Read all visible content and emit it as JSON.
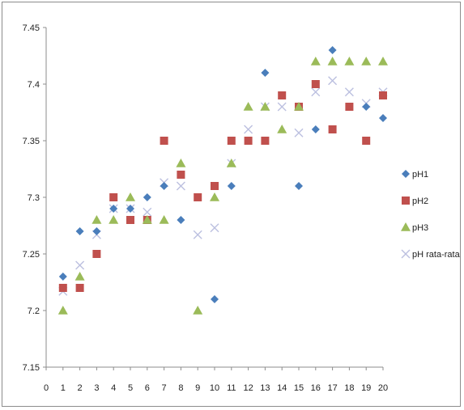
{
  "chart_data": {
    "type": "scatter",
    "title": "",
    "xlabel": "",
    "ylabel": "",
    "xlim": [
      0,
      20
    ],
    "ylim": [
      7.15,
      7.45
    ],
    "x_ticks": [
      "0",
      "1",
      "2",
      "3",
      "4",
      "5",
      "6",
      "7",
      "8",
      "9",
      "10",
      "11",
      "12",
      "13",
      "14",
      "15",
      "16",
      "17",
      "18",
      "19",
      "20"
    ],
    "y_ticks": [
      "7.15",
      "7.2",
      "7.25",
      "7.3",
      "7.35",
      "7.4",
      "7.45"
    ],
    "grid": false,
    "legend_position": "right",
    "x": [
      1,
      2,
      3,
      4,
      5,
      6,
      7,
      8,
      9,
      10,
      11,
      12,
      13,
      14,
      15,
      16,
      17,
      18,
      19,
      20
    ],
    "series": [
      {
        "name": "pH1",
        "marker": "diamond",
        "color": "#4a7ebb",
        "values": [
          7.23,
          7.27,
          7.27,
          7.29,
          7.29,
          7.3,
          7.31,
          7.28,
          null,
          7.21,
          7.31,
          null,
          7.41,
          null,
          7.31,
          7.36,
          7.43,
          null,
          7.38,
          7.37
        ]
      },
      {
        "name": "pH2",
        "marker": "square",
        "color": "#c0504d",
        "values": [
          7.22,
          7.22,
          7.25,
          7.3,
          7.28,
          7.28,
          7.35,
          7.32,
          7.3,
          7.31,
          7.35,
          7.35,
          7.35,
          7.39,
          7.38,
          7.4,
          7.36,
          7.38,
          7.35,
          7.39
        ]
      },
      {
        "name": "pH3",
        "marker": "triangle",
        "color": "#9bbb59",
        "values": [
          7.2,
          7.23,
          7.28,
          7.28,
          7.3,
          7.28,
          7.28,
          7.33,
          7.2,
          7.3,
          7.33,
          7.38,
          7.38,
          7.36,
          7.38,
          7.42,
          7.42,
          7.42,
          7.42,
          7.42
        ]
      },
      {
        "name": "pH rata-rata",
        "marker": "x",
        "color": "#bcc0e0",
        "values": [
          7.217,
          7.24,
          7.267,
          7.29,
          7.29,
          7.287,
          7.313,
          7.31,
          7.267,
          7.273,
          7.33,
          7.36,
          7.38,
          7.38,
          7.357,
          7.393,
          7.403,
          7.393,
          7.383,
          7.393
        ]
      }
    ]
  }
}
